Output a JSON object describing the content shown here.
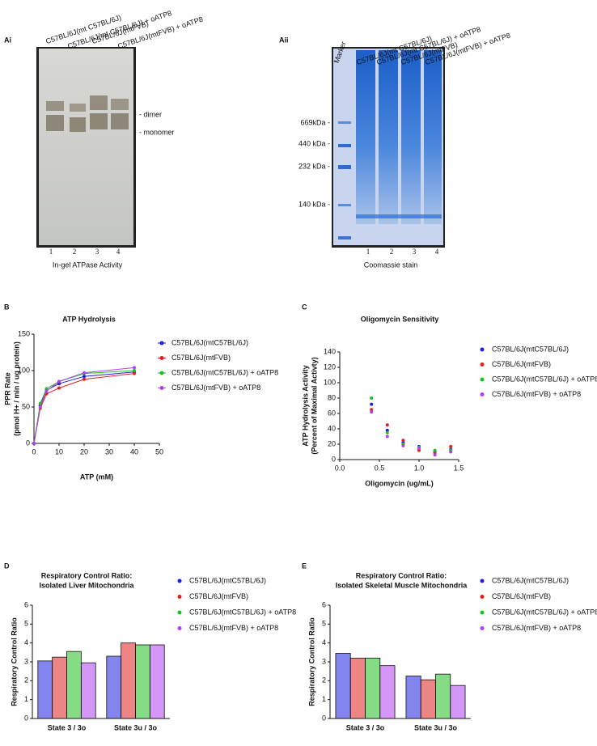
{
  "gels": [
    {
      "panel": "Ai",
      "lanes": [
        "C57BL/6J(mt C57BL/6J)",
        "C57BL/6J(mt C57BL/6J) + oATP8",
        "C57BL/6J(mtFVB)",
        "C57BL/6J(mtFVB) + oATP8"
      ],
      "lane_numbers": [
        "1",
        "2",
        "3",
        "4"
      ],
      "band_labels": [
        "- dimer",
        "- monomer"
      ],
      "caption": "In-gel ATPase Activity"
    },
    {
      "panel": "Aii",
      "lanes": [
        "Marker",
        "C57BL/6J(mt C57BL/6J)",
        "C57BL/6J(mt C57BL/6J) + oATP8",
        "C57BL/6J(mtFVB)",
        "C57BL/6J(mtFVB) + oATP8"
      ],
      "lane_numbers": [
        "1",
        "2",
        "3",
        "4"
      ],
      "size_labels": [
        "669kDa -",
        "440 kDa -",
        "232 kDa -",
        "140 kDa -"
      ],
      "caption": "Coomassie stain"
    }
  ],
  "chart_data": [
    {
      "type": "line",
      "panel": "B",
      "title": [
        "ATP Hydrolysis"
      ],
      "x_label": "ATP (mM)",
      "y_label": [
        "PPR Rate",
        "(pmol H+ / min / ug protein)"
      ],
      "x": [
        0,
        2.5,
        5,
        10,
        20,
        40
      ],
      "xlim": [
        0,
        50
      ],
      "xticks": [
        0,
        10,
        20,
        30,
        40,
        50
      ],
      "ylim": [
        0,
        150
      ],
      "yticks": [
        0,
        50,
        100,
        150
      ],
      "series": [
        {
          "name": "C57BL/6J(mtC57BL/6J)",
          "color": "#1f1fe0",
          "values": [
            0,
            52,
            73,
            82,
            92,
            98
          ]
        },
        {
          "name": "C57BL/6J(mtFVB)",
          "color": "#e02020",
          "values": [
            0,
            48,
            68,
            76,
            88,
            96
          ]
        },
        {
          "name": "C57BL/6J(mtC57BL/6J) + oATP8",
          "color": "#20c020",
          "values": [
            0,
            55,
            75,
            85,
            96,
            100
          ]
        },
        {
          "name": "C57BL/6J(mtFVB) + oATP8",
          "color": "#b040f0",
          "values": [
            0,
            50,
            72,
            85,
            97,
            104
          ]
        }
      ]
    },
    {
      "type": "scatter",
      "panel": "C",
      "title": [
        "Oligomycin Sensitivity"
      ],
      "x_label": "Oligomycin (ug/mL)",
      "y_label": [
        "ATP Hydrolysis Activity",
        "(Percent of Maximal Activty)"
      ],
      "x": [
        0.4,
        0.6,
        0.8,
        1.0,
        1.2,
        1.4
      ],
      "xlim": [
        0,
        1.5
      ],
      "xticks": [
        {
          "value": 0,
          "label": "0.0"
        },
        0.5,
        {
          "value": 1,
          "label": "1.0"
        },
        1.5
      ],
      "ylim": [
        0,
        140
      ],
      "yticks": [
        0,
        20,
        40,
        60,
        80,
        100,
        120,
        140
      ],
      "series": [
        {
          "name": "C57BL/6J(mtC57BL/6J)",
          "color": "#1f1fe0",
          "values": [
            72,
            38,
            22,
            17,
            10,
            13
          ]
        },
        {
          "name": "C57BL/6J(mtFVB)",
          "color": "#e02020",
          "values": [
            65,
            45,
            25,
            12,
            8,
            17
          ]
        },
        {
          "name": "C57BL/6J(mtC57BL/6J) + oATP8",
          "color": "#20c020",
          "values": [
            80,
            35,
            20,
            16,
            12,
            12
          ]
        },
        {
          "name": "C57BL/6J(mtFVB) + oATP8",
          "color": "#b040f0",
          "values": [
            62,
            30,
            18,
            15,
            6,
            10
          ]
        }
      ]
    },
    {
      "type": "bar",
      "panel": "D",
      "title": [
        "Respiratory Control Ratio:",
        "Isolated Liver Mitochondria"
      ],
      "y_label": [
        "Respiratory Control Ratio"
      ],
      "categories": [
        "State 3 / 3o",
        "State 3u / 3o"
      ],
      "ylim": [
        0,
        6
      ],
      "yticks": [
        0,
        1,
        2,
        3,
        4,
        5,
        6
      ],
      "series": [
        {
          "name": "C57BL/6J(mtC57BL/6J)",
          "color": "#1f1fe0",
          "values": [
            3.05,
            3.3
          ]
        },
        {
          "name": "C57BL/6J(mtFVB)",
          "color": "#e02020",
          "values": [
            3.25,
            4.0
          ]
        },
        {
          "name": "C57BL/6J(mtC57BL/6J) + oATP8",
          "color": "#20c020",
          "values": [
            3.55,
            3.9
          ]
        },
        {
          "name": "C57BL/6J(mtFVB) + oATP8",
          "color": "#b040f0",
          "values": [
            2.95,
            3.9
          ]
        }
      ]
    },
    {
      "type": "bar",
      "panel": "E",
      "title": [
        "Respiratory Control Ratio:",
        "Isolated Skeletal Muscle Mitochondria"
      ],
      "y_label": [
        "Respiratory Control Ratio"
      ],
      "categories": [
        "State 3 / 3o",
        "State 3u / 3o"
      ],
      "ylim": [
        0,
        6
      ],
      "yticks": [
        0,
        1,
        2,
        3,
        4,
        5,
        6
      ],
      "series": [
        {
          "name": "C57BL/6J(mtC57BL/6J)",
          "color": "#1f1fe0",
          "values": [
            3.45,
            2.25
          ]
        },
        {
          "name": "C57BL/6J(mtFVB)",
          "color": "#e02020",
          "values": [
            3.2,
            2.05
          ]
        },
        {
          "name": "C57BL/6J(mtC57BL/6J) + oATP8",
          "color": "#20c020",
          "values": [
            3.2,
            2.35
          ]
        },
        {
          "name": "C57BL/6J(mtFVB) + oATP8",
          "color": "#b040f0",
          "values": [
            2.8,
            1.75
          ]
        }
      ]
    }
  ]
}
